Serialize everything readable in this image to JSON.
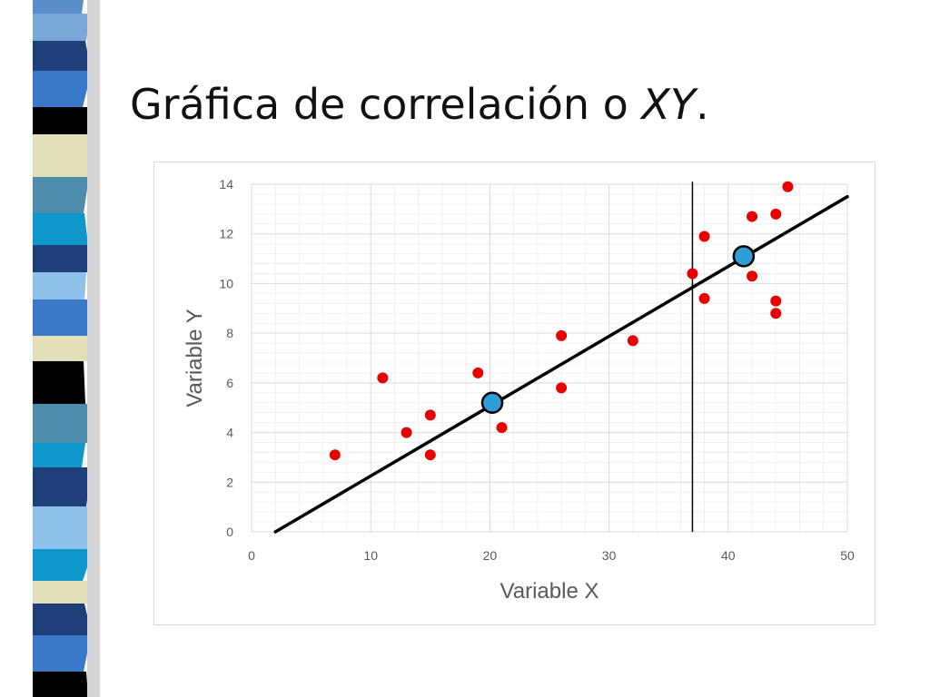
{
  "title": {
    "main": "Gráfica de correlación o ",
    "italic": "XY",
    "suffix": "."
  },
  "colors": {
    "points": "#e60000",
    "markers": "#2e9fd6",
    "line": "#000000",
    "grid_major": "#d9d9d9",
    "grid_minor": "#f0f0f0"
  },
  "chart_data": {
    "type": "scatter",
    "title": "",
    "xlabel": "Variable X",
    "ylabel": "Variable Y",
    "xlim": [
      0,
      50
    ],
    "ylim": [
      0,
      14
    ],
    "xticks": [
      0,
      10,
      20,
      30,
      40,
      50
    ],
    "yticks": [
      0,
      2,
      4,
      6,
      8,
      10,
      12,
      14
    ],
    "grid": true,
    "minor_grid": true,
    "legend": "none",
    "points": [
      {
        "x": 7,
        "y": 3.1
      },
      {
        "x": 11,
        "y": 6.2
      },
      {
        "x": 13,
        "y": 4.0
      },
      {
        "x": 15,
        "y": 3.1
      },
      {
        "x": 15,
        "y": 4.7
      },
      {
        "x": 19,
        "y": 6.4
      },
      {
        "x": 21,
        "y": 4.2
      },
      {
        "x": 26,
        "y": 5.8
      },
      {
        "x": 26,
        "y": 7.9
      },
      {
        "x": 32,
        "y": 7.7
      },
      {
        "x": 37,
        "y": 10.4
      },
      {
        "x": 38,
        "y": 9.4
      },
      {
        "x": 38,
        "y": 11.9
      },
      {
        "x": 42,
        "y": 10.3
      },
      {
        "x": 42,
        "y": 12.7
      },
      {
        "x": 44,
        "y": 8.8
      },
      {
        "x": 44,
        "y": 9.3
      },
      {
        "x": 44,
        "y": 12.8
      },
      {
        "x": 45,
        "y": 13.9
      }
    ],
    "trend_line": {
      "x": [
        2,
        50
      ],
      "y": [
        0,
        13.5
      ]
    },
    "highlight_points": [
      {
        "x": 20.2,
        "y": 5.2
      },
      {
        "x": 41.3,
        "y": 11.1
      }
    ],
    "vertical_line": {
      "x": 37,
      "y": [
        0,
        14.1
      ]
    }
  }
}
